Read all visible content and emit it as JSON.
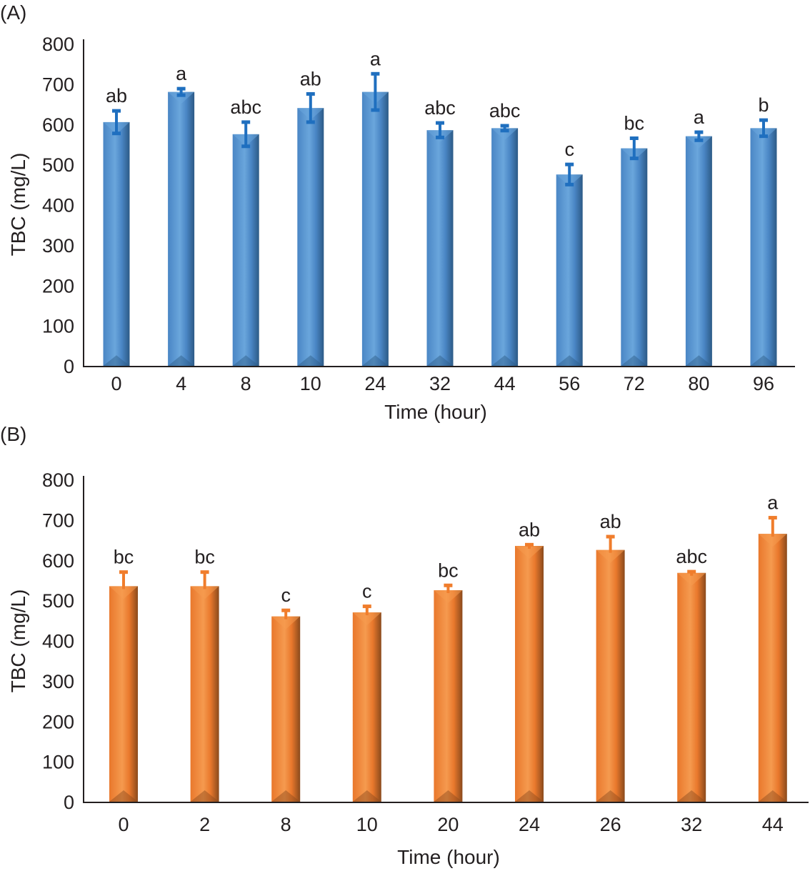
{
  "chart_data": [
    {
      "type": "bar",
      "panel_label": "(A)",
      "xlabel": "Time (hour)",
      "ylabel": "TBC (mg/L)",
      "ylim": [
        0,
        800
      ],
      "yticks": [
        "0",
        "100",
        "200",
        "300",
        "400",
        "500",
        "600",
        "700",
        "800"
      ],
      "grid": false,
      "categories": [
        "0",
        "4",
        "8",
        "10",
        "24",
        "32",
        "44",
        "56",
        "72",
        "80",
        "96"
      ],
      "values": [
        605,
        680,
        575,
        640,
        680,
        585,
        590,
        475,
        540,
        570,
        590
      ],
      "errors": [
        28,
        8,
        30,
        35,
        45,
        18,
        6,
        25,
        25,
        10,
        20
      ],
      "error_style": "both",
      "significance": [
        "ab",
        "a",
        "abc",
        "ab",
        "a",
        "abc",
        "abc",
        "c",
        "bc",
        "a",
        "b"
      ],
      "colors": {
        "bar_light": "#6aa6dc",
        "bar_mid": "#4a86c5",
        "bar_dark": "#2c5a86",
        "error": "#1f6fbf"
      }
    },
    {
      "type": "bar",
      "panel_label": "(B)",
      "xlabel": "Time (hour)",
      "ylabel": "TBC (mg/L)",
      "ylim": [
        0,
        800
      ],
      "yticks": [
        "0",
        "100",
        "200",
        "300",
        "400",
        "500",
        "600",
        "700",
        "800"
      ],
      "grid": false,
      "categories": [
        "0",
        "2",
        "8",
        "10",
        "20",
        "24",
        "26",
        "32",
        "44"
      ],
      "values": [
        535,
        535,
        460,
        470,
        525,
        635,
        625,
        568,
        665
      ],
      "errors": [
        35,
        35,
        15,
        15,
        12,
        3,
        33,
        3,
        40
      ],
      "error_style": "upper",
      "significance": [
        "bc",
        "bc",
        "c",
        "c",
        "bc",
        "ab",
        "ab",
        "abc",
        "a"
      ],
      "colors": {
        "bar_light": "#f59a4f",
        "bar_mid": "#e9782c",
        "bar_dark": "#8a4a1c",
        "error": "#f07d2c"
      }
    }
  ]
}
